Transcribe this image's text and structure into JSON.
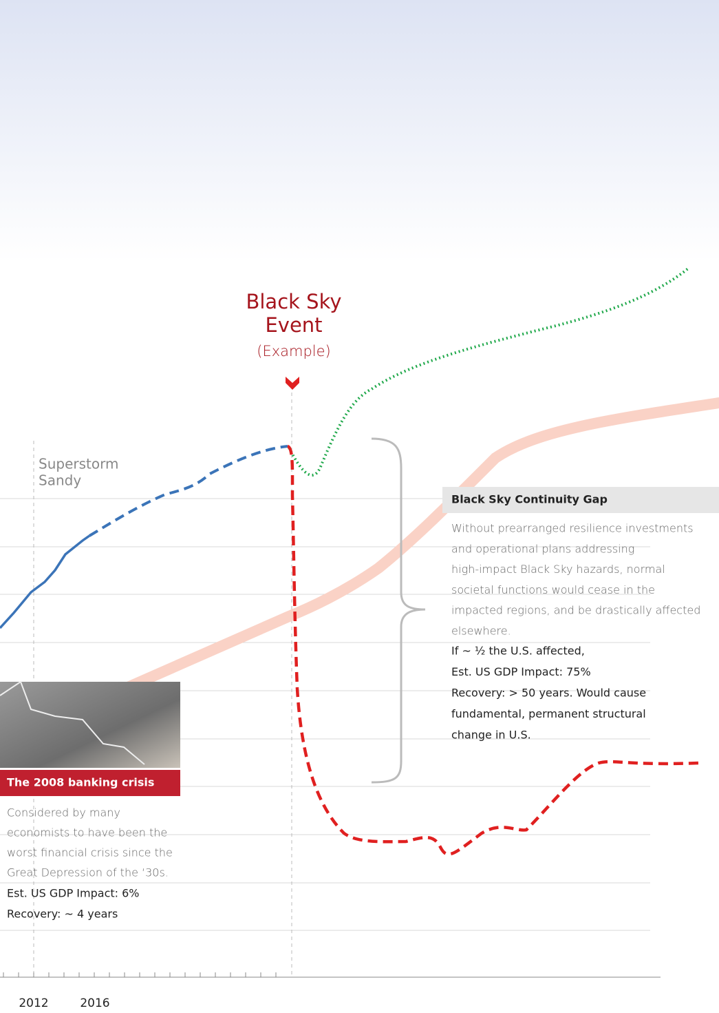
{
  "event": {
    "title_lines": [
      "Black Sky",
      "Event"
    ],
    "subtitle": "(Example)"
  },
  "annotation": {
    "lines": [
      "Superstorm",
      "Sandy"
    ]
  },
  "gap_panel": {
    "title": "Black Sky Continuity Gap",
    "body_lines": [
      "Without prearranged resilience investments",
      "and operational plans addressing",
      "high-impact Black Sky hazards, normal",
      "societal functions would cease in the",
      "impacted regions, and be drastically affected",
      "elsewhere."
    ],
    "impact_lines": [
      "If ~ ½ the U.S. affected,",
      "Est. US GDP Impact: 75%",
      "Recovery:  > 50 years.  Would cause",
      "fundamental, permanent structural",
      "change in U.S."
    ]
  },
  "crisis_panel": {
    "title": "The 2008 banking crisis",
    "body_lines": [
      "Considered by many",
      "economists to have been the",
      "worst financial crisis since the",
      "Great Depression of the ‘30s."
    ],
    "impact_lines": [
      "Est. US GDP Impact: 6%",
      "Recovery: ~ 4 years"
    ]
  },
  "x_axis": {
    "labels": [
      "2012",
      "2016"
    ]
  }
}
